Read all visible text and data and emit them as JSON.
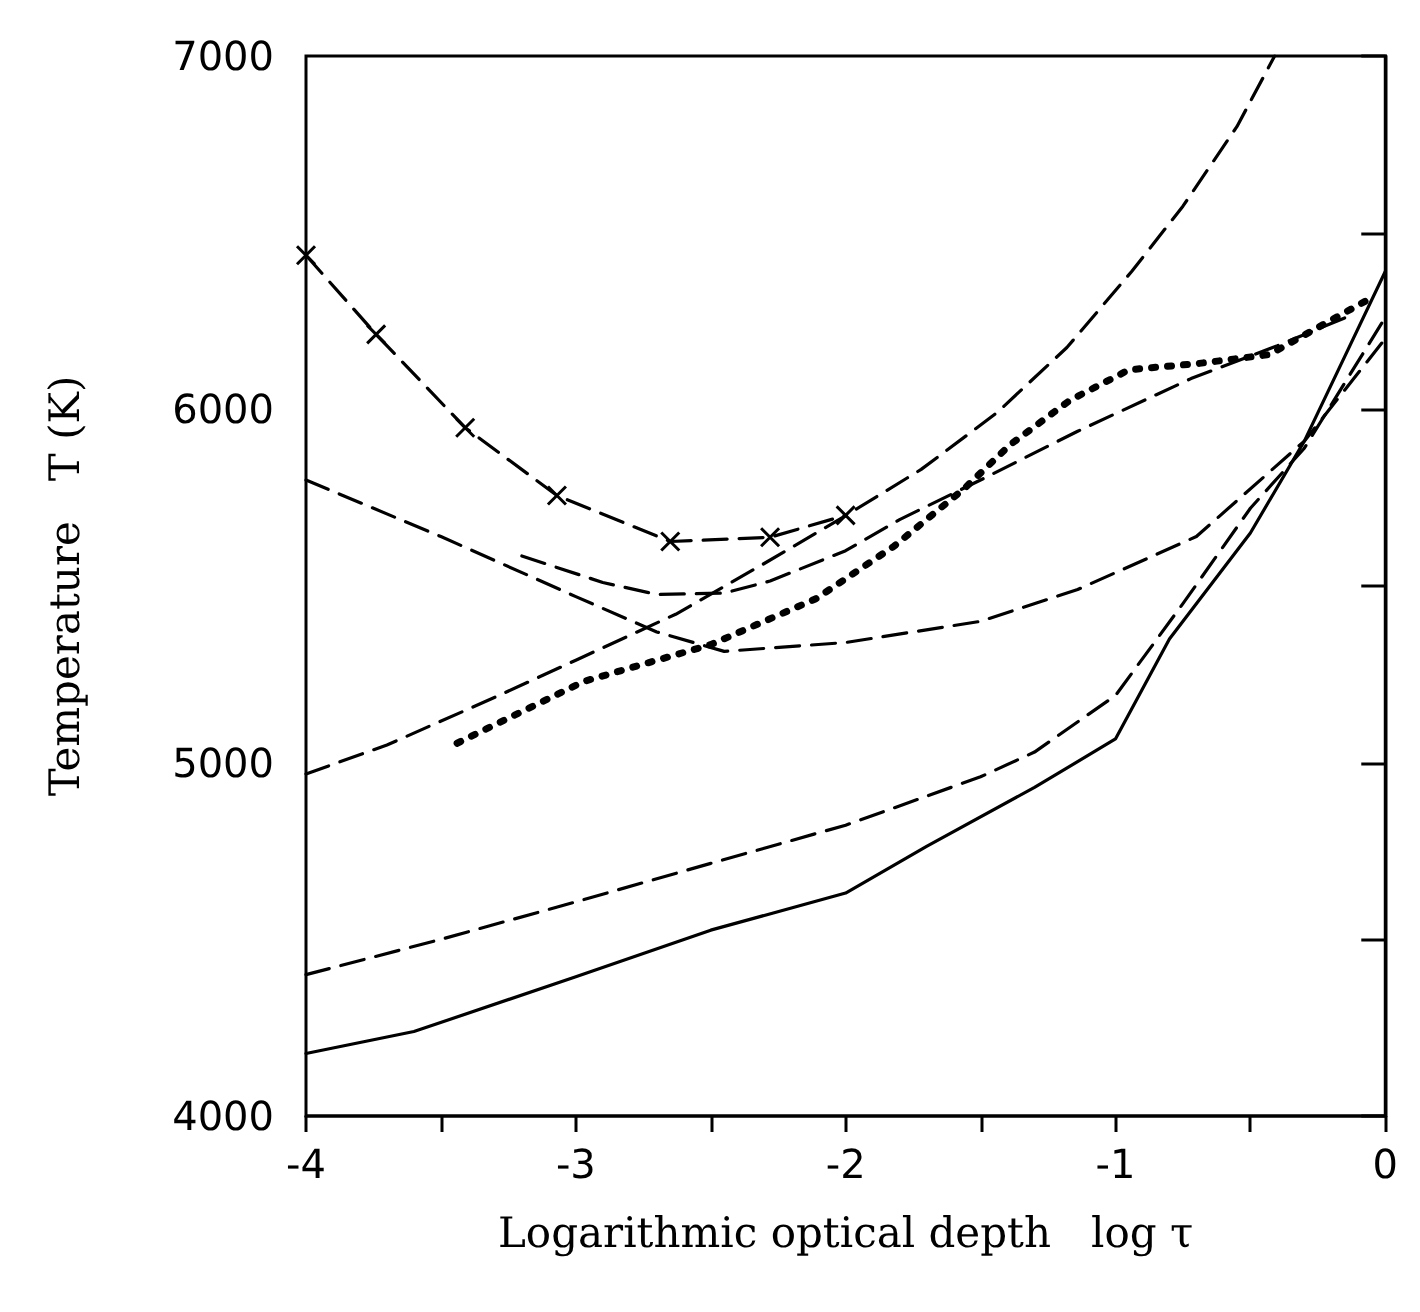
{
  "chart_data": {
    "type": "line",
    "xlabel": "Logarithmic optical depth   log τ",
    "ylabel": "Temperature   T (K)",
    "xlim": [
      -4,
      0
    ],
    "ylim": [
      4000,
      7000
    ],
    "xticks": [
      -4,
      {
        "value": -3.5,
        "label": null
      },
      -3,
      {
        "value": -2.5,
        "label": null
      },
      -2,
      {
        "value": -1.5,
        "label": null
      },
      -1,
      {
        "value": -0.5,
        "label": null
      },
      0
    ],
    "yticks": [
      4000,
      {
        "value": 4500,
        "label": null
      },
      5000,
      {
        "value": 5500,
        "label": null
      },
      6000,
      {
        "value": 6500,
        "label": null
      },
      7000
    ],
    "grid": false,
    "series": [
      {
        "color": "#000000",
        "line_style": "solid",
        "x": [
          -4,
          -3.6,
          -3,
          -2.5,
          -2,
          -1.7,
          -1.3,
          -1,
          -0.8,
          -0.5,
          -0.3,
          -0.15,
          0
        ],
        "values": [
          4177,
          4239,
          4394,
          4526,
          4631,
          4763,
          4930,
          5067,
          5350,
          5650,
          5910,
          6150,
          6390
        ]
      },
      {
        "color": "#000000",
        "line_style": "dashed",
        "x": [
          -4,
          -3.5,
          -3,
          -2.5,
          -2,
          -1.5,
          -1.3,
          -1,
          -0.75,
          -0.5,
          -0.3,
          0
        ],
        "values": [
          4400,
          4500,
          4606,
          4715,
          4823,
          4960,
          5030,
          5190,
          5450,
          5720,
          5890,
          6260
        ]
      },
      {
        "color": "#000000",
        "line_style": "dashed",
        "x": [
          -4,
          -3.5,
          -3,
          -2.7,
          -2.45,
          -2,
          -1.5,
          -1.14,
          -0.7,
          -0.3,
          0
        ],
        "values": [
          5800,
          5640,
          5470,
          5370,
          5315,
          5340,
          5400,
          5490,
          5640,
          5910,
          6200
        ]
      },
      {
        "color": "#000000",
        "line_style": "dashed",
        "x": [
          -3.2,
          -2.9,
          -2.7,
          -2.45,
          -2.28,
          -2,
          -1.8,
          -1.5,
          -1.14,
          -0.72,
          -0.4,
          -0.14
        ],
        "values": [
          5585,
          5510,
          5476,
          5480,
          5514,
          5600,
          5688,
          5800,
          5938,
          6087,
          6180,
          6262
        ]
      },
      {
        "color": "#000000",
        "line_style": "dashed",
        "x": [
          -4,
          -3.7,
          -3.3,
          -3,
          -2.63,
          -2.31,
          -2.02,
          -1.72,
          -1.44,
          -1.18,
          -0.94,
          -0.75,
          -0.55,
          -0.41
        ],
        "values": [
          4968,
          5050,
          5185,
          5290,
          5420,
          5560,
          5690,
          5830,
          5990,
          6175,
          6390,
          6575,
          6800,
          7000
        ]
      },
      {
        "color": "#000000",
        "line_style": "dotted",
        "x": [
          -3.44,
          -2.97,
          -2.5,
          -2.11,
          -1.82,
          -1.56,
          -1.39,
          -1.17,
          -0.95,
          -0.69,
          -0.43,
          -0.06
        ],
        "values": [
          5055,
          5230,
          5334,
          5464,
          5613,
          5776,
          5900,
          6025,
          6112,
          6130,
          6155,
          6312
        ]
      },
      {
        "color": "#000000",
        "line_style": "dashed",
        "marker": "cross",
        "x": [
          -4,
          -3.74,
          -3.41,
          -3.07,
          -2.65,
          -2.28,
          -2.0
        ],
        "values": [
          6436,
          6212,
          5948,
          5756,
          5626,
          5638,
          5700
        ]
      }
    ]
  }
}
